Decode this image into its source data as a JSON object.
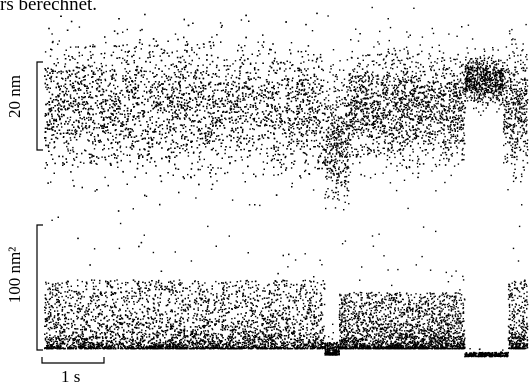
{
  "caption": "rs berechnet.",
  "chart_data": [
    {
      "type": "scatter",
      "ylabel": "20 nm",
      "scale_bar_y": 20,
      "description_of_series": "dense single-molecule displacement trace",
      "segments": [
        {
          "x": [
            0.0,
            5.8
          ],
          "center": 0.0,
          "spread": 14
        },
        {
          "x": [
            5.8,
            6.3
          ],
          "center": -8,
          "spread": 14
        },
        {
          "x": [
            6.3,
            8.7
          ],
          "center": 0.0,
          "spread": 12
        },
        {
          "x": [
            8.7,
            9.5
          ],
          "center": 6,
          "spread": 5
        },
        {
          "x": [
            9.5,
            10.0
          ],
          "center": 0.0,
          "spread": 14
        }
      ]
    },
    {
      "type": "scatter",
      "ylabel": "100 nm²",
      "scale_bar_y": 100,
      "segments": [
        {
          "x": [
            0.0,
            5.8
          ],
          "base": 0,
          "spread": 55
        },
        {
          "x": [
            5.8,
            6.1
          ],
          "base": -5,
          "spread": 10
        },
        {
          "x": [
            6.1,
            8.7
          ],
          "base": 0,
          "spread": 45
        },
        {
          "x": [
            8.7,
            9.6
          ],
          "base": -8,
          "spread": 5
        },
        {
          "x": [
            9.6,
            10.0
          ],
          "base": 0,
          "spread": 55
        }
      ]
    }
  ],
  "xlabel": "1 s",
  "scale_bar_x": 1
}
